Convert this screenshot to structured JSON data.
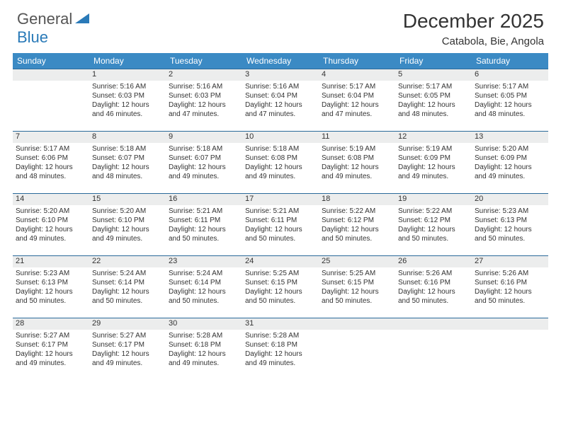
{
  "logo": {
    "word1": "General",
    "word2": "Blue",
    "triangle_color": "#2a7ab8"
  },
  "title": "December 2025",
  "location": "Catabola, Bie, Angola",
  "header_bg": "#3b8ac4",
  "header_text": "#ffffff",
  "daynum_bg": "#eceded",
  "rule_color": "#2a6a9a",
  "text_color": "#333333",
  "font_size_dayhdr": 12,
  "font_size_daynum": 11,
  "font_size_info": 10,
  "day_headers": [
    "Sunday",
    "Monday",
    "Tuesday",
    "Wednesday",
    "Thursday",
    "Friday",
    "Saturday"
  ],
  "weeks": [
    {
      "nums": [
        "",
        "1",
        "2",
        "3",
        "4",
        "5",
        "6"
      ],
      "cells": [
        null,
        {
          "sunrise": "Sunrise: 5:16 AM",
          "sunset": "Sunset: 6:03 PM",
          "daylight": "Daylight: 12 hours and 46 minutes."
        },
        {
          "sunrise": "Sunrise: 5:16 AM",
          "sunset": "Sunset: 6:03 PM",
          "daylight": "Daylight: 12 hours and 47 minutes."
        },
        {
          "sunrise": "Sunrise: 5:16 AM",
          "sunset": "Sunset: 6:04 PM",
          "daylight": "Daylight: 12 hours and 47 minutes."
        },
        {
          "sunrise": "Sunrise: 5:17 AM",
          "sunset": "Sunset: 6:04 PM",
          "daylight": "Daylight: 12 hours and 47 minutes."
        },
        {
          "sunrise": "Sunrise: 5:17 AM",
          "sunset": "Sunset: 6:05 PM",
          "daylight": "Daylight: 12 hours and 48 minutes."
        },
        {
          "sunrise": "Sunrise: 5:17 AM",
          "sunset": "Sunset: 6:05 PM",
          "daylight": "Daylight: 12 hours and 48 minutes."
        }
      ]
    },
    {
      "nums": [
        "7",
        "8",
        "9",
        "10",
        "11",
        "12",
        "13"
      ],
      "cells": [
        {
          "sunrise": "Sunrise: 5:17 AM",
          "sunset": "Sunset: 6:06 PM",
          "daylight": "Daylight: 12 hours and 48 minutes."
        },
        {
          "sunrise": "Sunrise: 5:18 AM",
          "sunset": "Sunset: 6:07 PM",
          "daylight": "Daylight: 12 hours and 48 minutes."
        },
        {
          "sunrise": "Sunrise: 5:18 AM",
          "sunset": "Sunset: 6:07 PM",
          "daylight": "Daylight: 12 hours and 49 minutes."
        },
        {
          "sunrise": "Sunrise: 5:18 AM",
          "sunset": "Sunset: 6:08 PM",
          "daylight": "Daylight: 12 hours and 49 minutes."
        },
        {
          "sunrise": "Sunrise: 5:19 AM",
          "sunset": "Sunset: 6:08 PM",
          "daylight": "Daylight: 12 hours and 49 minutes."
        },
        {
          "sunrise": "Sunrise: 5:19 AM",
          "sunset": "Sunset: 6:09 PM",
          "daylight": "Daylight: 12 hours and 49 minutes."
        },
        {
          "sunrise": "Sunrise: 5:20 AM",
          "sunset": "Sunset: 6:09 PM",
          "daylight": "Daylight: 12 hours and 49 minutes."
        }
      ]
    },
    {
      "nums": [
        "14",
        "15",
        "16",
        "17",
        "18",
        "19",
        "20"
      ],
      "cells": [
        {
          "sunrise": "Sunrise: 5:20 AM",
          "sunset": "Sunset: 6:10 PM",
          "daylight": "Daylight: 12 hours and 49 minutes."
        },
        {
          "sunrise": "Sunrise: 5:20 AM",
          "sunset": "Sunset: 6:10 PM",
          "daylight": "Daylight: 12 hours and 49 minutes."
        },
        {
          "sunrise": "Sunrise: 5:21 AM",
          "sunset": "Sunset: 6:11 PM",
          "daylight": "Daylight: 12 hours and 50 minutes."
        },
        {
          "sunrise": "Sunrise: 5:21 AM",
          "sunset": "Sunset: 6:11 PM",
          "daylight": "Daylight: 12 hours and 50 minutes."
        },
        {
          "sunrise": "Sunrise: 5:22 AM",
          "sunset": "Sunset: 6:12 PM",
          "daylight": "Daylight: 12 hours and 50 minutes."
        },
        {
          "sunrise": "Sunrise: 5:22 AM",
          "sunset": "Sunset: 6:12 PM",
          "daylight": "Daylight: 12 hours and 50 minutes."
        },
        {
          "sunrise": "Sunrise: 5:23 AM",
          "sunset": "Sunset: 6:13 PM",
          "daylight": "Daylight: 12 hours and 50 minutes."
        }
      ]
    },
    {
      "nums": [
        "21",
        "22",
        "23",
        "24",
        "25",
        "26",
        "27"
      ],
      "cells": [
        {
          "sunrise": "Sunrise: 5:23 AM",
          "sunset": "Sunset: 6:13 PM",
          "daylight": "Daylight: 12 hours and 50 minutes."
        },
        {
          "sunrise": "Sunrise: 5:24 AM",
          "sunset": "Sunset: 6:14 PM",
          "daylight": "Daylight: 12 hours and 50 minutes."
        },
        {
          "sunrise": "Sunrise: 5:24 AM",
          "sunset": "Sunset: 6:14 PM",
          "daylight": "Daylight: 12 hours and 50 minutes."
        },
        {
          "sunrise": "Sunrise: 5:25 AM",
          "sunset": "Sunset: 6:15 PM",
          "daylight": "Daylight: 12 hours and 50 minutes."
        },
        {
          "sunrise": "Sunrise: 5:25 AM",
          "sunset": "Sunset: 6:15 PM",
          "daylight": "Daylight: 12 hours and 50 minutes."
        },
        {
          "sunrise": "Sunrise: 5:26 AM",
          "sunset": "Sunset: 6:16 PM",
          "daylight": "Daylight: 12 hours and 50 minutes."
        },
        {
          "sunrise": "Sunrise: 5:26 AM",
          "sunset": "Sunset: 6:16 PM",
          "daylight": "Daylight: 12 hours and 50 minutes."
        }
      ]
    },
    {
      "nums": [
        "28",
        "29",
        "30",
        "31",
        "",
        "",
        ""
      ],
      "cells": [
        {
          "sunrise": "Sunrise: 5:27 AM",
          "sunset": "Sunset: 6:17 PM",
          "daylight": "Daylight: 12 hours and 49 minutes."
        },
        {
          "sunrise": "Sunrise: 5:27 AM",
          "sunset": "Sunset: 6:17 PM",
          "daylight": "Daylight: 12 hours and 49 minutes."
        },
        {
          "sunrise": "Sunrise: 5:28 AM",
          "sunset": "Sunset: 6:18 PM",
          "daylight": "Daylight: 12 hours and 49 minutes."
        },
        {
          "sunrise": "Sunrise: 5:28 AM",
          "sunset": "Sunset: 6:18 PM",
          "daylight": "Daylight: 12 hours and 49 minutes."
        },
        null,
        null,
        null
      ]
    }
  ]
}
